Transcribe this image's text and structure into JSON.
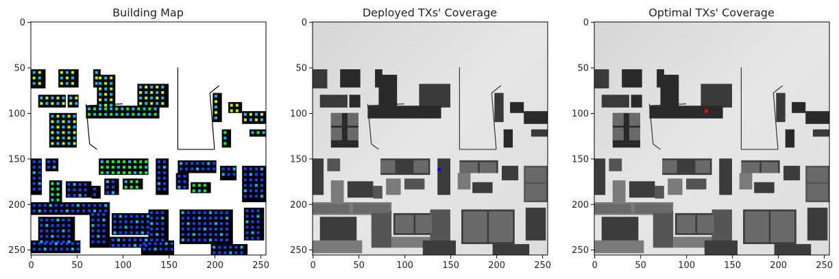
{
  "figure": {
    "panels": [
      {
        "title": "Building Map"
      },
      {
        "title": "Deployed TXs' Coverage"
      },
      {
        "title": "Optimal TXs' Coverage"
      }
    ]
  },
  "chart_data": [
    {
      "type": "heatmap",
      "title": "Building Map",
      "xlabel": "",
      "ylabel": "",
      "xlim": [
        0,
        255
      ],
      "ylim": [
        255,
        0
      ],
      "xticks": [
        0,
        50,
        100,
        150,
        200,
        250
      ],
      "yticks": [
        0,
        50,
        100,
        150,
        200,
        250
      ],
      "background": "#ffffff",
      "building_color": "#000000",
      "marker_colors": [
        "#00ff22",
        "#b7ff00",
        "#00bfff",
        "#1144ff"
      ]
    },
    {
      "type": "heatmap",
      "title": "Deployed TXs' Coverage",
      "xlabel": "",
      "ylabel": "",
      "xlim": [
        0,
        255
      ],
      "ylim": [
        255,
        0
      ],
      "xticks": [
        0,
        50,
        100,
        150,
        200,
        250
      ],
      "yticks": [
        0,
        50,
        100,
        150,
        200,
        250
      ],
      "colormap": "gray",
      "transmitters": [
        {
          "x": 138,
          "y": 162,
          "color": "#0000ff"
        }
      ]
    },
    {
      "type": "heatmap",
      "title": "Optimal TXs' Coverage",
      "xlabel": "",
      "ylabel": "",
      "xlim": [
        0,
        255
      ],
      "ylim": [
        255,
        0
      ],
      "xticks": [
        0,
        50,
        100,
        150,
        200,
        250
      ],
      "yticks": [
        0,
        50,
        100,
        150,
        200,
        250
      ],
      "colormap": "gray",
      "transmitters": [
        {
          "x": 122,
          "y": 98,
          "color": "#ff0000"
        }
      ]
    }
  ]
}
